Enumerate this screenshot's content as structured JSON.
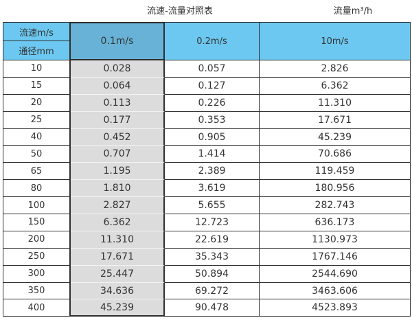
{
  "chart_data": {
    "type": "table",
    "title": "流速-流量对照表",
    "unit_label": "流量m³/h",
    "corner_top": "流速m/s",
    "corner_bottom": "通径mm",
    "columns": [
      "0.1m/s",
      "0.2m/s",
      "10m/s"
    ],
    "rows": [
      {
        "diameter": "10",
        "values": [
          "0.028",
          "0.057",
          "2.826"
        ]
      },
      {
        "diameter": "15",
        "values": [
          "0.064",
          "0.127",
          "6.362"
        ]
      },
      {
        "diameter": "20",
        "values": [
          "0.113",
          "0.226",
          "11.310"
        ]
      },
      {
        "diameter": "25",
        "values": [
          "0.177",
          "0.353",
          "17.671"
        ]
      },
      {
        "diameter": "40",
        "values": [
          "0.452",
          "0.905",
          "45.239"
        ]
      },
      {
        "diameter": "50",
        "values": [
          "0.707",
          "1.414",
          "70.686"
        ]
      },
      {
        "diameter": "65",
        "values": [
          "1.195",
          "2.389",
          "119.459"
        ]
      },
      {
        "diameter": "80",
        "values": [
          "1.810",
          "3.619",
          "180.956"
        ]
      },
      {
        "diameter": "100",
        "values": [
          "2.827",
          "5.655",
          "282.743"
        ]
      },
      {
        "diameter": "150",
        "values": [
          "6.362",
          "12.723",
          "636.173"
        ]
      },
      {
        "diameter": "200",
        "values": [
          "11.310",
          "22.619",
          "1130.973"
        ]
      },
      {
        "diameter": "250",
        "values": [
          "17.671",
          "35.343",
          "1767.146"
        ]
      },
      {
        "diameter": "300",
        "values": [
          "25.447",
          "50.894",
          "2544.690"
        ]
      },
      {
        "diameter": "350",
        "values": [
          "34.636",
          "69.272",
          "3463.606"
        ]
      },
      {
        "diameter": "400",
        "values": [
          "45.239",
          "90.478",
          "4523.893"
        ]
      }
    ]
  },
  "colors": {
    "header_blue": "#6cc8f0",
    "highlight_header_blue": "#67b2d6",
    "highlight_gray": "#dcdcdc",
    "border_dark": "#2e2e2e"
  }
}
